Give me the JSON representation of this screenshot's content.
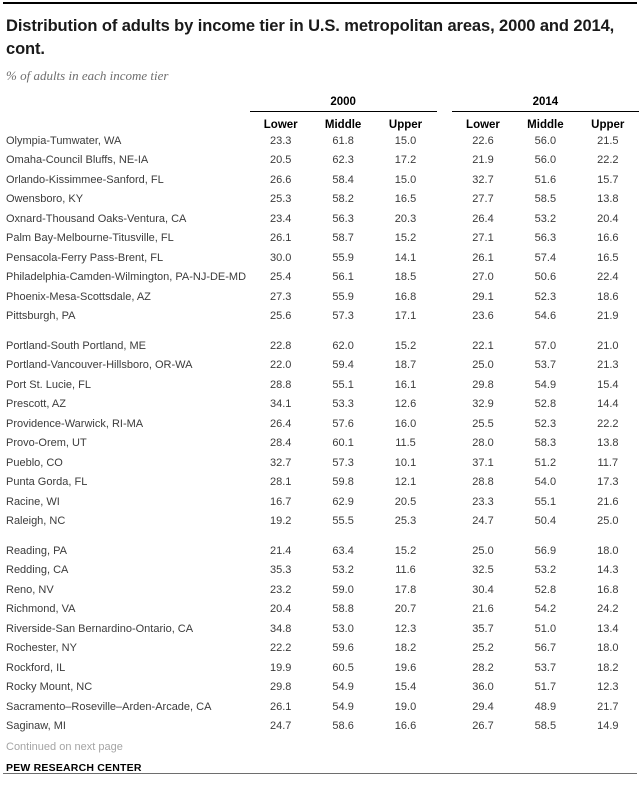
{
  "header": {
    "title_line1": "Distribution of adults by income tier in U.S. metropolitan areas, 2000 and 2014,",
    "title_line2": "cont.",
    "subtitle": "% of adults in each income tier"
  },
  "footer": {
    "continued_note": "Continued on next page",
    "source": "PEW RESEARCH CENTER"
  },
  "colors": {
    "top_rule": "#000000",
    "bottom_rule": "#6e6e6e",
    "body_text": "#3b3b3b",
    "muted_text": "#a5a5a5"
  },
  "chart_data": {
    "type": "table",
    "title": "Distribution of adults by income tier in U.S. metropolitan areas, 2000 and 2014, cont.",
    "subtitle": "% of adults in each income tier",
    "unit": "% of adults in each income tier",
    "column_groups": [
      "2000",
      "2014"
    ],
    "sub_columns": [
      "Lower",
      "Middle",
      "Upper"
    ],
    "group_breaks": [
      10,
      20
    ],
    "rows": [
      {
        "name": "Olympia-Tumwater, WA",
        "y2000": [
          "23.3",
          "61.8",
          "15.0"
        ],
        "y2014": [
          "22.6",
          "56.0",
          "21.5"
        ]
      },
      {
        "name": "Omaha-Council Bluffs, NE-IA",
        "y2000": [
          "20.5",
          "62.3",
          "17.2"
        ],
        "y2014": [
          "21.9",
          "56.0",
          "22.2"
        ]
      },
      {
        "name": "Orlando-Kissimmee-Sanford, FL",
        "y2000": [
          "26.6",
          "58.4",
          "15.0"
        ],
        "y2014": [
          "32.7",
          "51.6",
          "15.7"
        ]
      },
      {
        "name": "Owensboro, KY",
        "y2000": [
          "25.3",
          "58.2",
          "16.5"
        ],
        "y2014": [
          "27.7",
          "58.5",
          "13.8"
        ]
      },
      {
        "name": "Oxnard-Thousand Oaks-Ventura, CA",
        "y2000": [
          "23.4",
          "56.3",
          "20.3"
        ],
        "y2014": [
          "26.4",
          "53.2",
          "20.4"
        ]
      },
      {
        "name": "Palm Bay-Melbourne-Titusville, FL",
        "y2000": [
          "26.1",
          "58.7",
          "15.2"
        ],
        "y2014": [
          "27.1",
          "56.3",
          "16.6"
        ]
      },
      {
        "name": "Pensacola-Ferry Pass-Brent, FL",
        "y2000": [
          "30.0",
          "55.9",
          "14.1"
        ],
        "y2014": [
          "26.1",
          "57.4",
          "16.5"
        ]
      },
      {
        "name": "Philadelphia-Camden-Wilmington, PA-NJ-DE-MD",
        "y2000": [
          "25.4",
          "56.1",
          "18.5"
        ],
        "y2014": [
          "27.0",
          "50.6",
          "22.4"
        ]
      },
      {
        "name": "Phoenix-Mesa-Scottsdale, AZ",
        "y2000": [
          "27.3",
          "55.9",
          "16.8"
        ],
        "y2014": [
          "29.1",
          "52.3",
          "18.6"
        ]
      },
      {
        "name": "Pittsburgh, PA",
        "y2000": [
          "25.6",
          "57.3",
          "17.1"
        ],
        "y2014": [
          "23.6",
          "54.6",
          "21.9"
        ]
      },
      {
        "name": "Portland-South Portland, ME",
        "y2000": [
          "22.8",
          "62.0",
          "15.2"
        ],
        "y2014": [
          "22.1",
          "57.0",
          "21.0"
        ]
      },
      {
        "name": "Portland-Vancouver-Hillsboro, OR-WA",
        "y2000": [
          "22.0",
          "59.4",
          "18.7"
        ],
        "y2014": [
          "25.0",
          "53.7",
          "21.3"
        ]
      },
      {
        "name": "Port St. Lucie, FL",
        "y2000": [
          "28.8",
          "55.1",
          "16.1"
        ],
        "y2014": [
          "29.8",
          "54.9",
          "15.4"
        ]
      },
      {
        "name": "Prescott, AZ",
        "y2000": [
          "34.1",
          "53.3",
          "12.6"
        ],
        "y2014": [
          "32.9",
          "52.8",
          "14.4"
        ]
      },
      {
        "name": "Providence-Warwick, RI-MA",
        "y2000": [
          "26.4",
          "57.6",
          "16.0"
        ],
        "y2014": [
          "25.5",
          "52.3",
          "22.2"
        ]
      },
      {
        "name": "Provo-Orem, UT",
        "y2000": [
          "28.4",
          "60.1",
          "11.5"
        ],
        "y2014": [
          "28.0",
          "58.3",
          "13.8"
        ]
      },
      {
        "name": "Pueblo, CO",
        "y2000": [
          "32.7",
          "57.3",
          "10.1"
        ],
        "y2014": [
          "37.1",
          "51.2",
          "11.7"
        ]
      },
      {
        "name": "Punta Gorda, FL",
        "y2000": [
          "28.1",
          "59.8",
          "12.1"
        ],
        "y2014": [
          "28.8",
          "54.0",
          "17.3"
        ]
      },
      {
        "name": "Racine, WI",
        "y2000": [
          "16.7",
          "62.9",
          "20.5"
        ],
        "y2014": [
          "23.3",
          "55.1",
          "21.6"
        ]
      },
      {
        "name": "Raleigh, NC",
        "y2000": [
          "19.2",
          "55.5",
          "25.3"
        ],
        "y2014": [
          "24.7",
          "50.4",
          "25.0"
        ]
      },
      {
        "name": "Reading, PA",
        "y2000": [
          "21.4",
          "63.4",
          "15.2"
        ],
        "y2014": [
          "25.0",
          "56.9",
          "18.0"
        ]
      },
      {
        "name": "Redding, CA",
        "y2000": [
          "35.3",
          "53.2",
          "11.6"
        ],
        "y2014": [
          "32.5",
          "53.2",
          "14.3"
        ]
      },
      {
        "name": "Reno, NV",
        "y2000": [
          "23.2",
          "59.0",
          "17.8"
        ],
        "y2014": [
          "30.4",
          "52.8",
          "16.8"
        ]
      },
      {
        "name": "Richmond, VA",
        "y2000": [
          "20.4",
          "58.8",
          "20.7"
        ],
        "y2014": [
          "21.6",
          "54.2",
          "24.2"
        ]
      },
      {
        "name": "Riverside-San Bernardino-Ontario, CA",
        "y2000": [
          "34.8",
          "53.0",
          "12.3"
        ],
        "y2014": [
          "35.7",
          "51.0",
          "13.4"
        ]
      },
      {
        "name": "Rochester, NY",
        "y2000": [
          "22.2",
          "59.6",
          "18.2"
        ],
        "y2014": [
          "25.2",
          "56.7",
          "18.0"
        ]
      },
      {
        "name": "Rockford, IL",
        "y2000": [
          "19.9",
          "60.5",
          "19.6"
        ],
        "y2014": [
          "28.2",
          "53.7",
          "18.2"
        ]
      },
      {
        "name": "Rocky Mount, NC",
        "y2000": [
          "29.8",
          "54.9",
          "15.4"
        ],
        "y2014": [
          "36.0",
          "51.7",
          "12.3"
        ]
      },
      {
        "name": "Sacramento–Roseville–Arden-Arcade, CA",
        "y2000": [
          "26.1",
          "54.9",
          "19.0"
        ],
        "y2014": [
          "29.4",
          "48.9",
          "21.7"
        ]
      },
      {
        "name": "Saginaw, MI",
        "y2000": [
          "24.7",
          "58.6",
          "16.6"
        ],
        "y2014": [
          "26.7",
          "58.5",
          "14.9"
        ]
      }
    ]
  }
}
